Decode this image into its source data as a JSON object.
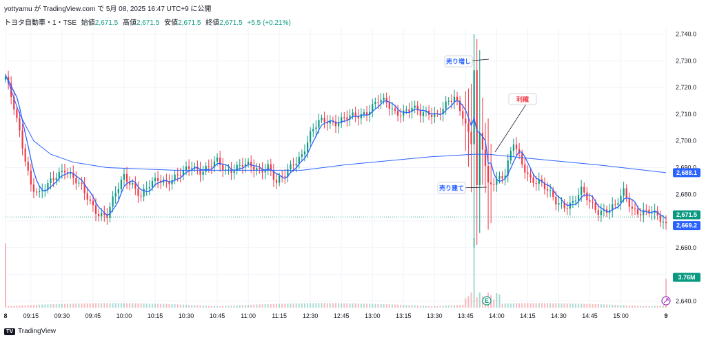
{
  "header": {
    "publish_line": "yottyamu が TradingView.com で 5月 08, 2025 16:47 UTC+9 に公開",
    "symbol": "トヨタ自動車・1・TSE",
    "open_label": "始値",
    "open_value": "2,671.5",
    "high_label": "高値",
    "high_value": "2,671.5",
    "low_label": "安値",
    "low_value": "2,671.5",
    "close_label": "終値",
    "close_value": "2,671.5",
    "change": "+5.5 (+0.21%)"
  },
  "footer": {
    "brand": "TradingView"
  },
  "annotations": {
    "sell_add": "売り増し",
    "take_profit": "利確",
    "sell_build": "売り建て"
  },
  "price_tags": {
    "vwap": "2,688.1",
    "last": "2,671.5",
    "ma": "2,669.2",
    "volume": "3.76M"
  },
  "earnings_marker": "E",
  "colors": {
    "up": "#089981",
    "down": "#f23645",
    "vwap": "#2962ff",
    "ma": "#2962ff",
    "accent_red": "#f23645",
    "accent_blue": "#2962ff",
    "grid": "#f0f3fa"
  },
  "chart_data": {
    "type": "candlestick",
    "title": "",
    "xlabel": "",
    "ylabel": "",
    "y_ticks": [
      2640,
      2650,
      2660,
      2670,
      2680,
      2690,
      2700,
      2710,
      2720,
      2730,
      2740
    ],
    "y_tick_labels": [
      "2,640.0",
      "",
      "2,660.0",
      "",
      "2,680.0",
      "2,690.0",
      "2,700.0",
      "2,710.0",
      "2,720.0",
      "2,730.0",
      "2,740.0"
    ],
    "ylim": [
      2637.5,
      2742.5
    ],
    "x_ticks": [
      "8",
      "09:15",
      "09:30",
      "09:45",
      "10:00",
      "10:15",
      "10:30",
      "10:45",
      "11:00",
      "11:15",
      "12:30",
      "12:45",
      "13:00",
      "13:15",
      "13:30",
      "13:45",
      "14:00",
      "14:15",
      "14:30",
      "14:45",
      "15:00",
      "9"
    ],
    "close_path": [
      [
        0,
        2724
      ],
      [
        3,
        2712
      ],
      [
        6,
        2698
      ],
      [
        9,
        2684
      ],
      [
        12,
        2680
      ],
      [
        15,
        2683
      ],
      [
        18,
        2687
      ],
      [
        21,
        2690
      ],
      [
        24,
        2686
      ],
      [
        27,
        2682
      ],
      [
        30,
        2677
      ],
      [
        33,
        2673
      ],
      [
        36,
        2672
      ],
      [
        39,
        2680
      ],
      [
        42,
        2687
      ],
      [
        45,
        2684
      ],
      [
        48,
        2679
      ],
      [
        51,
        2683
      ],
      [
        54,
        2686
      ],
      [
        57,
        2685
      ],
      [
        60,
        2686
      ],
      [
        63,
        2688
      ],
      [
        66,
        2691
      ],
      [
        69,
        2689
      ],
      [
        72,
        2690
      ],
      [
        75,
        2692
      ],
      [
        78,
        2689
      ],
      [
        81,
        2690
      ],
      [
        84,
        2691
      ],
      [
        87,
        2690
      ],
      [
        90,
        2689
      ],
      [
        93,
        2691
      ],
      [
        96,
        2684
      ],
      [
        99,
        2687
      ],
      [
        102,
        2692
      ],
      [
        105,
        2695
      ],
      [
        108,
        2702
      ],
      [
        111,
        2707
      ],
      [
        114,
        2708
      ],
      [
        117,
        2707
      ],
      [
        120,
        2708
      ],
      [
        123,
        2709
      ],
      [
        126,
        2710
      ],
      [
        129,
        2712
      ],
      [
        132,
        2715
      ],
      [
        135,
        2714
      ],
      [
        138,
        2711
      ],
      [
        141,
        2711
      ],
      [
        144,
        2712
      ],
      [
        147,
        2710
      ],
      [
        150,
        2711
      ],
      [
        153,
        2710
      ],
      [
        156,
        2713
      ],
      [
        159,
        2716
      ],
      [
        162,
        2710
      ],
      [
        165,
        2700
      ],
      [
        166,
        2727
      ],
      [
        167,
        2682
      ],
      [
        168,
        2702
      ],
      [
        169,
        2697
      ],
      [
        171,
        2683
      ],
      [
        174,
        2686
      ],
      [
        177,
        2688
      ],
      [
        180,
        2699
      ],
      [
        183,
        2691
      ],
      [
        186,
        2686
      ],
      [
        189,
        2685
      ],
      [
        192,
        2681
      ],
      [
        195,
        2677
      ],
      [
        198,
        2676
      ],
      [
        201,
        2677
      ],
      [
        204,
        2681
      ],
      [
        207,
        2677
      ],
      [
        210,
        2674
      ],
      [
        213,
        2674
      ],
      [
        216,
        2675
      ],
      [
        219,
        2681
      ],
      [
        222,
        2675
      ],
      [
        225,
        2673
      ],
      [
        228,
        2673
      ],
      [
        231,
        2672
      ],
      [
        234,
        2669
      ]
    ],
    "vwap_series": [
      [
        0,
        2725
      ],
      [
        5,
        2710
      ],
      [
        10,
        2700
      ],
      [
        16,
        2695
      ],
      [
        24,
        2692
      ],
      [
        36,
        2690
      ],
      [
        60,
        2689
      ],
      [
        90,
        2689
      ],
      [
        105,
        2689
      ],
      [
        120,
        2691
      ],
      [
        150,
        2694
      ],
      [
        166,
        2695
      ],
      [
        171,
        2695
      ],
      [
        190,
        2693
      ],
      [
        210,
        2691
      ],
      [
        234,
        2688.1
      ]
    ],
    "last_price": 2671.5,
    "ma_last": 2669.2,
    "volume_last": "3.76M",
    "volume_spikes": [
      [
        0,
        0.85
      ],
      [
        166,
        0.92
      ],
      [
        234,
        0.38
      ]
    ]
  }
}
